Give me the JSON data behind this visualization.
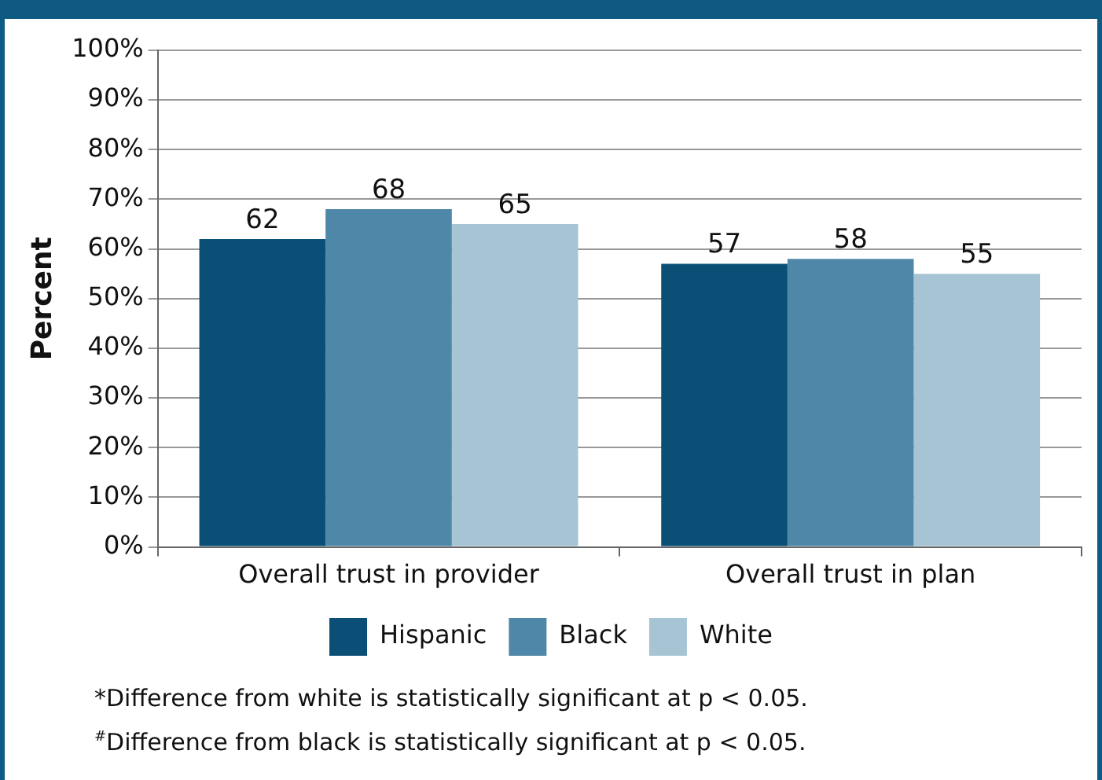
{
  "chart_data": {
    "type": "bar",
    "ylabel": "Percent",
    "categories": [
      "Overall trust in provider",
      "Overall trust in plan"
    ],
    "series": [
      {
        "name": "Hispanic",
        "color": "#0b4f77",
        "values": [
          62,
          57
        ]
      },
      {
        "name": "Black",
        "color": "#4e87a7",
        "values": [
          68,
          58
        ]
      },
      {
        "name": "White",
        "color": "#a7c4d5",
        "values": [
          65,
          55
        ]
      }
    ],
    "ylim": [
      0,
      100
    ],
    "yticks": [
      {
        "value": 0,
        "label": "0%"
      },
      {
        "value": 10,
        "label": "10%"
      },
      {
        "value": 20,
        "label": "20%"
      },
      {
        "value": 30,
        "label": "30%"
      },
      {
        "value": 40,
        "label": "40%"
      },
      {
        "value": 50,
        "label": "50%"
      },
      {
        "value": 60,
        "label": "60%"
      },
      {
        "value": 70,
        "label": "70%"
      },
      {
        "value": 80,
        "label": "80%"
      },
      {
        "value": 90,
        "label": "90%"
      },
      {
        "value": 100,
        "label": "100%"
      }
    ],
    "grid": "y",
    "legend": "bottom",
    "data_labels": true,
    "annotations": [
      "*Difference from white is statistically significant at p < 0.05.",
      "$^{#}$Difference from black is statistically significant at p < 0.05."
    ]
  }
}
